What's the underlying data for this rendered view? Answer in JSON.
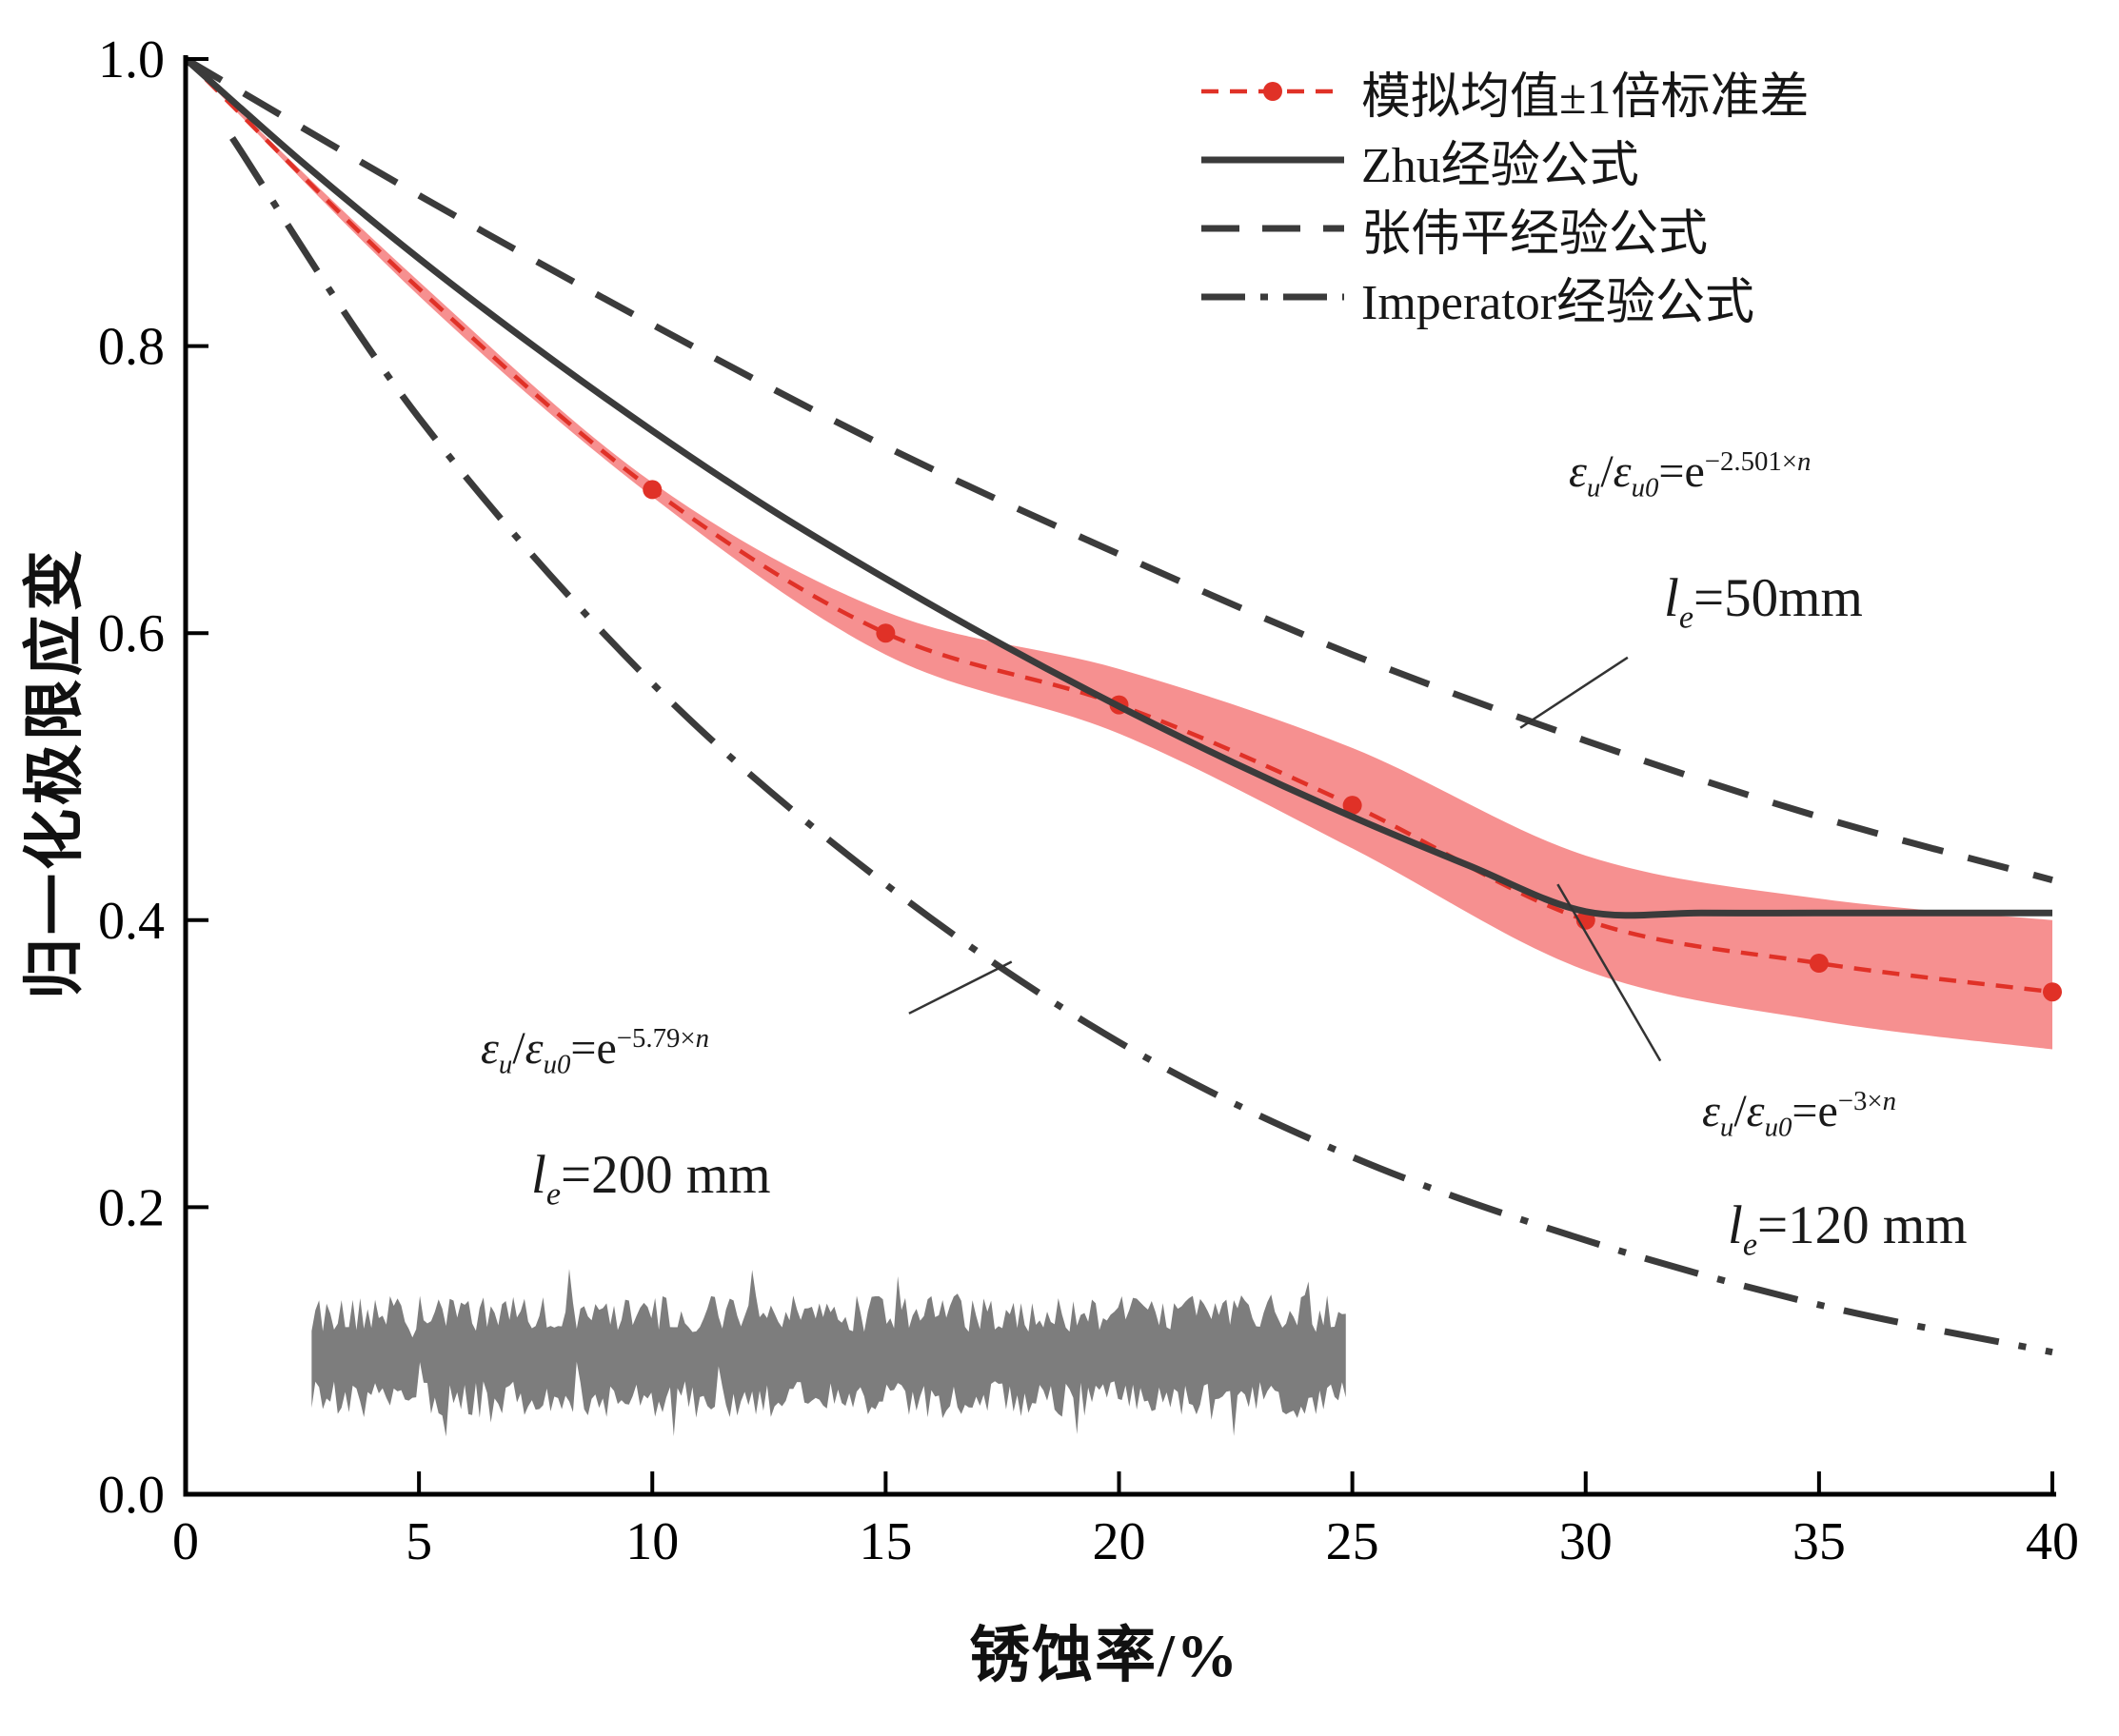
{
  "chart_data": {
    "type": "line",
    "title": "",
    "xlabel": "锈蚀率/%",
    "ylabel": "归一化极限应变",
    "xlim": [
      0,
      40
    ],
    "ylim": [
      0.0,
      1.0
    ],
    "x_ticks": [
      0,
      5,
      10,
      15,
      20,
      25,
      30,
      35,
      40
    ],
    "y_ticks": [
      0.0,
      0.2,
      0.4,
      0.6,
      0.8,
      1.0
    ],
    "grid": false,
    "legend_position": "top-right-inside",
    "band": {
      "name": "模拟均值±1倍标准差范围",
      "color": "#f57d7d",
      "x": [
        0,
        5,
        10,
        15,
        20,
        25,
        30,
        35,
        40
      ],
      "upper": [
        1.0,
        0.845,
        0.705,
        0.615,
        0.575,
        0.52,
        0.445,
        0.415,
        0.4
      ],
      "lower": [
        1.0,
        0.835,
        0.695,
        0.585,
        0.53,
        0.45,
        0.365,
        0.33,
        0.31
      ]
    },
    "series": [
      {
        "name": "模拟均值±1倍标准差",
        "style": "dashed",
        "color": "#e03127",
        "x": [
          0,
          5,
          10,
          15,
          20,
          25,
          30,
          35,
          40
        ],
        "y": [
          1.0,
          0.84,
          0.7,
          0.6,
          0.55,
          0.48,
          0.4,
          0.37,
          0.35
        ],
        "markers": {
          "x": [
            10,
            15,
            20,
            25,
            30,
            35,
            40
          ],
          "y": [
            0.7,
            0.6,
            0.55,
            0.48,
            0.4,
            0.37,
            0.35
          ]
        }
      },
      {
        "name": "Zhu经验公式",
        "style": "solid",
        "color": "#3b3b3b",
        "x": [
          0,
          2.5,
          5,
          7.5,
          10,
          12.5,
          15,
          17.5,
          20,
          22.5,
          25,
          27.5,
          30,
          32.5,
          35,
          37.5,
          40
        ],
        "y": [
          1.0,
          0.928,
          0.861,
          0.799,
          0.741,
          0.687,
          0.638,
          0.592,
          0.549,
          0.509,
          0.472,
          0.438,
          0.406,
          0.405,
          0.405,
          0.405,
          0.405
        ]
      },
      {
        "name": "张伟平经验公式",
        "style": "dashed",
        "color": "#3b3b3b",
        "x": [
          0,
          5,
          10,
          15,
          20,
          25,
          30,
          35,
          40
        ],
        "y": [
          1.0,
          0.905,
          0.815,
          0.73,
          0.655,
          0.585,
          0.525,
          0.472,
          0.428
        ]
      },
      {
        "name": "Imperator经验公式",
        "style": "dashdot",
        "color": "#3b3b3b",
        "x": [
          1,
          5,
          10,
          15,
          20,
          25,
          30,
          35,
          40
        ],
        "y": [
          0.945,
          0.75,
          0.565,
          0.425,
          0.315,
          0.235,
          0.177,
          0.132,
          0.099
        ]
      }
    ],
    "rebar_profile": {
      "x_start": 2.7,
      "x_end": 24.9,
      "y_center": 0.096,
      "half_height": 0.03,
      "noise": 0.013,
      "color": "#7d7d7d"
    },
    "leaders": [
      {
        "from": [
          28.6,
          0.534
        ],
        "to": [
          30.9,
          0.583
        ]
      },
      {
        "from": [
          15.5,
          0.335
        ],
        "to": [
          17.7,
          0.371
        ]
      },
      {
        "from": [
          29.4,
          0.425
        ],
        "to": [
          31.6,
          0.302
        ]
      }
    ]
  },
  "annotations": [
    {
      "sym1": "ε",
      "sub1": "u",
      "slash": "/",
      "sym2": "ε",
      "sub2": "u0",
      "eq": "=e",
      "exp": "−2.501×",
      "expvar": "n",
      "gauge_pre": "l",
      "gauge_sub": "e",
      "gauge_rest": "=50mm"
    },
    {
      "sym1": "ε",
      "sub1": "u",
      "slash": "/",
      "sym2": "ε",
      "sub2": "u0",
      "eq": "=e",
      "exp": "−5.79×",
      "expvar": "n",
      "gauge_pre": "l",
      "gauge_sub": "e",
      "gauge_rest": "=200 mm"
    },
    {
      "sym1": "ε",
      "sub1": "u",
      "slash": "/",
      "sym2": "ε",
      "sub2": "u0",
      "eq": "=e",
      "exp": "−3×",
      "expvar": "n",
      "gauge_pre": "l",
      "gauge_sub": "e",
      "gauge_rest": "=120 mm"
    }
  ]
}
